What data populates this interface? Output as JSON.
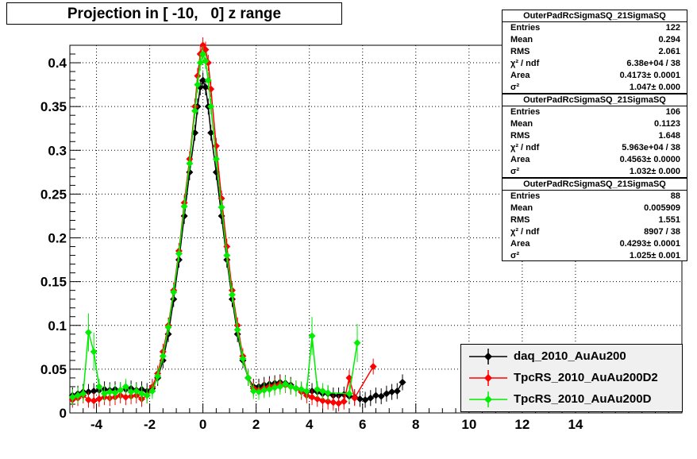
{
  "chart_data": {
    "type": "scatter",
    "title": "Projection in [ -10,   0] z range",
    "xlim": [
      -5,
      18
    ],
    "ylim": [
      0,
      0.42
    ],
    "grid": true,
    "x_ticks": [
      "-4",
      "-2",
      "0",
      "2",
      "4",
      "6",
      "8",
      "10",
      "12",
      "14"
    ],
    "x_tick_values": [
      -4,
      -2,
      0,
      2,
      4,
      6,
      8,
      10,
      12,
      14
    ],
    "y_ticks": [
      "0",
      "0.05",
      "0.1",
      "0.15",
      "0.2",
      "0.25",
      "0.3",
      "0.35",
      "0.4"
    ],
    "y_tick_values": [
      0,
      0.05,
      0.1,
      0.15,
      0.2,
      0.25,
      0.3,
      0.35,
      0.4
    ],
    "legend_position": "bottom-right",
    "series": [
      {
        "name": "daq_2010_AuAu200",
        "color": "#000000",
        "points": [
          [
            -4.9,
            0.02
          ],
          [
            -4.7,
            0.022
          ],
          [
            -4.5,
            0.024
          ],
          [
            -4.3,
            0.024
          ],
          [
            -4.1,
            0.025
          ],
          [
            -3.9,
            0.026
          ],
          [
            -3.7,
            0.027
          ],
          [
            -3.5,
            0.026
          ],
          [
            -3.3,
            0.027
          ],
          [
            -3.1,
            0.026
          ],
          [
            -2.9,
            0.027
          ],
          [
            -2.7,
            0.028
          ],
          [
            -2.5,
            0.026
          ],
          [
            -2.3,
            0.027
          ],
          [
            -2.1,
            0.025
          ],
          [
            -1.9,
            0.028
          ],
          [
            -1.7,
            0.04
          ],
          [
            -1.5,
            0.06
          ],
          [
            -1.3,
            0.09
          ],
          [
            -1.1,
            0.13
          ],
          [
            -0.9,
            0.175
          ],
          [
            -0.7,
            0.225
          ],
          [
            -0.5,
            0.275
          ],
          [
            -0.3,
            0.32
          ],
          [
            -0.2,
            0.35
          ],
          [
            -0.1,
            0.372
          ],
          [
            0.0,
            0.38
          ],
          [
            0.1,
            0.372
          ],
          [
            0.2,
            0.35
          ],
          [
            0.3,
            0.32
          ],
          [
            0.5,
            0.275
          ],
          [
            0.7,
            0.225
          ],
          [
            0.9,
            0.175
          ],
          [
            1.1,
            0.13
          ],
          [
            1.3,
            0.09
          ],
          [
            1.5,
            0.06
          ],
          [
            1.7,
            0.04
          ],
          [
            1.9,
            0.03
          ],
          [
            2.1,
            0.03
          ],
          [
            2.3,
            0.032
          ],
          [
            2.5,
            0.033
          ],
          [
            2.7,
            0.034
          ],
          [
            2.9,
            0.035
          ],
          [
            3.1,
            0.034
          ],
          [
            3.3,
            0.032
          ],
          [
            3.5,
            0.028
          ],
          [
            3.7,
            0.026
          ],
          [
            3.9,
            0.024
          ],
          [
            4.1,
            0.025
          ],
          [
            4.3,
            0.024
          ],
          [
            4.5,
            0.022
          ],
          [
            4.7,
            0.022
          ],
          [
            4.9,
            0.02
          ],
          [
            5.1,
            0.02
          ],
          [
            5.3,
            0.021
          ],
          [
            5.5,
            0.019
          ],
          [
            5.7,
            0.018
          ],
          [
            5.9,
            0.016
          ],
          [
            6.1,
            0.015
          ],
          [
            6.3,
            0.017
          ],
          [
            6.5,
            0.02
          ],
          [
            6.7,
            0.019
          ],
          [
            6.9,
            0.022
          ],
          [
            7.1,
            0.024
          ],
          [
            7.3,
            0.025
          ],
          [
            7.5,
            0.035
          ]
        ]
      },
      {
        "name": "TpcRS_2010_AuAu200D2",
        "color": "#ff0000",
        "points": [
          [
            -4.9,
            0.015
          ],
          [
            -4.7,
            0.017
          ],
          [
            -4.5,
            0.02
          ],
          [
            -4.3,
            0.015
          ],
          [
            -4.1,
            0.014
          ],
          [
            -3.9,
            0.016
          ],
          [
            -3.7,
            0.018
          ],
          [
            -3.5,
            0.017
          ],
          [
            -3.3,
            0.018
          ],
          [
            -3.1,
            0.02
          ],
          [
            -2.9,
            0.018
          ],
          [
            -2.7,
            0.019
          ],
          [
            -2.5,
            0.02
          ],
          [
            -2.3,
            0.016
          ],
          [
            -2.1,
            0.02
          ],
          [
            -1.9,
            0.03
          ],
          [
            -1.7,
            0.045
          ],
          [
            -1.5,
            0.07
          ],
          [
            -1.3,
            0.1
          ],
          [
            -1.1,
            0.14
          ],
          [
            -0.9,
            0.185
          ],
          [
            -0.7,
            0.24
          ],
          [
            -0.5,
            0.29
          ],
          [
            -0.3,
            0.35
          ],
          [
            -0.2,
            0.385
          ],
          [
            -0.1,
            0.41
          ],
          [
            0.0,
            0.42
          ],
          [
            0.1,
            0.415
          ],
          [
            0.2,
            0.4
          ],
          [
            0.3,
            0.37
          ],
          [
            0.5,
            0.305
          ],
          [
            0.7,
            0.245
          ],
          [
            0.9,
            0.19
          ],
          [
            1.1,
            0.14
          ],
          [
            1.3,
            0.1
          ],
          [
            1.5,
            0.065
          ],
          [
            1.7,
            0.04
          ],
          [
            1.9,
            0.028
          ],
          [
            2.1,
            0.026
          ],
          [
            2.3,
            0.028
          ],
          [
            2.5,
            0.03
          ],
          [
            2.7,
            0.031
          ],
          [
            2.9,
            0.033
          ],
          [
            3.1,
            0.032
          ],
          [
            3.3,
            0.03
          ],
          [
            3.5,
            0.028
          ],
          [
            3.7,
            0.024
          ],
          [
            3.9,
            0.02
          ],
          [
            4.1,
            0.018
          ],
          [
            4.3,
            0.016
          ],
          [
            4.5,
            0.014
          ],
          [
            4.7,
            0.013
          ],
          [
            4.9,
            0.012
          ],
          [
            5.1,
            0.011
          ],
          [
            5.3,
            0.013
          ],
          [
            5.5,
            0.04
          ],
          [
            5.7,
            0.017
          ],
          [
            6.4,
            0.053
          ]
        ]
      },
      {
        "name": "TpcRS_2010_AuAu200D",
        "color": "#00ee00",
        "points": [
          [
            -4.9,
            0.018
          ],
          [
            -4.7,
            0.02
          ],
          [
            -4.5,
            0.022
          ],
          [
            -4.3,
            0.092
          ],
          [
            -4.1,
            0.07
          ],
          [
            -3.9,
            0.03
          ],
          [
            -3.7,
            0.022
          ],
          [
            -3.5,
            0.024
          ],
          [
            -3.3,
            0.023
          ],
          [
            -3.1,
            0.026
          ],
          [
            -2.9,
            0.03
          ],
          [
            -2.7,
            0.024
          ],
          [
            -2.5,
            0.025
          ],
          [
            -2.3,
            0.022
          ],
          [
            -2.1,
            0.02
          ],
          [
            -1.9,
            0.025
          ],
          [
            -1.7,
            0.042
          ],
          [
            -1.5,
            0.065
          ],
          [
            -1.3,
            0.098
          ],
          [
            -1.1,
            0.138
          ],
          [
            -0.9,
            0.182
          ],
          [
            -0.7,
            0.236
          ],
          [
            -0.5,
            0.285
          ],
          [
            -0.3,
            0.345
          ],
          [
            -0.2,
            0.375
          ],
          [
            -0.1,
            0.4
          ],
          [
            0.0,
            0.41
          ],
          [
            0.1,
            0.402
          ],
          [
            0.2,
            0.38
          ],
          [
            0.3,
            0.35
          ],
          [
            0.5,
            0.29
          ],
          [
            0.7,
            0.235
          ],
          [
            0.9,
            0.18
          ],
          [
            1.1,
            0.135
          ],
          [
            1.3,
            0.095
          ],
          [
            1.5,
            0.062
          ],
          [
            1.7,
            0.04
          ],
          [
            1.9,
            0.025
          ],
          [
            2.1,
            0.024
          ],
          [
            2.3,
            0.026
          ],
          [
            2.5,
            0.027
          ],
          [
            2.7,
            0.029
          ],
          [
            2.9,
            0.03
          ],
          [
            3.1,
            0.033
          ],
          [
            3.3,
            0.03
          ],
          [
            3.5,
            0.028
          ],
          [
            3.7,
            0.027
          ],
          [
            3.9,
            0.025
          ],
          [
            4.1,
            0.088
          ],
          [
            4.3,
            0.027
          ],
          [
            4.5,
            0.025
          ],
          [
            4.7,
            0.023
          ],
          [
            5.5,
            0.022
          ],
          [
            5.8,
            0.08
          ]
        ]
      }
    ],
    "stat_boxes": [
      {
        "name": "OuterPadRcSigmaSQ_21SigmaSQ",
        "color": "#000000",
        "rows": [
          [
            "Entries",
            "122"
          ],
          [
            "Mean",
            "0.294"
          ],
          [
            "RMS",
            "2.061"
          ],
          [
            "χ² / ndf",
            "6.38e+04 / 38"
          ],
          [
            "Area",
            "0.4173± 0.0001"
          ],
          [
            "σ²",
            "1.047± 0.000"
          ]
        ]
      },
      {
        "name": "OuterPadRcSigmaSQ_21SigmaSQ",
        "color": "#ff0000",
        "rows": [
          [
            "Entries",
            "106"
          ],
          [
            "Mean",
            "0.1123"
          ],
          [
            "RMS",
            "1.648"
          ],
          [
            "χ² / ndf",
            "5.963e+04 / 38"
          ],
          [
            "Area",
            "0.4563± 0.0000"
          ],
          [
            "σ²",
            "1.032± 0.000"
          ]
        ]
      },
      {
        "name": "OuterPadRcSigmaSQ_21SigmaSQ",
        "color": "#00ee00",
        "rows": [
          [
            "Entries",
            "88"
          ],
          [
            "Mean",
            "0.005909"
          ],
          [
            "RMS",
            "1.551"
          ],
          [
            "χ² / ndf",
            "8907 / 38"
          ],
          [
            "Area",
            "0.4293± 0.0001"
          ],
          [
            "σ²",
            "1.025± 0.001"
          ]
        ]
      }
    ]
  }
}
